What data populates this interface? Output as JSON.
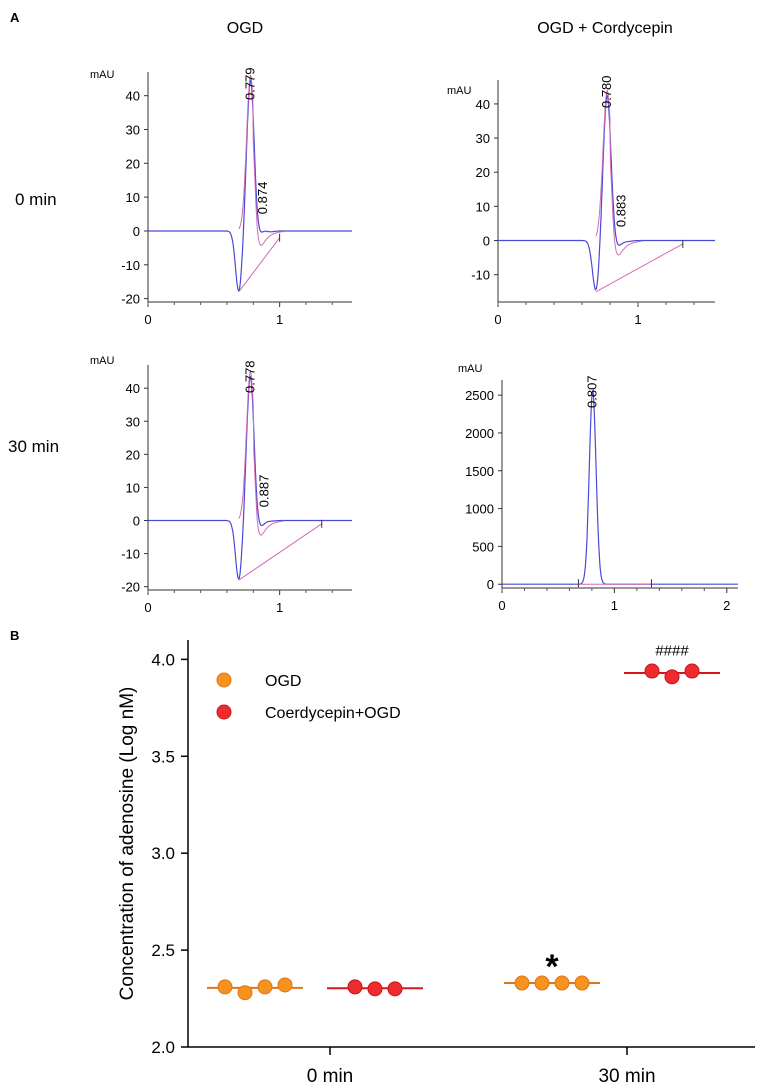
{
  "panel_a": {
    "letter": "A",
    "col_titles": [
      "OGD",
      "OGD + Cordycepin"
    ],
    "row_labels": [
      "0 min",
      "30 min"
    ]
  },
  "panel_b": {
    "letter": "B"
  },
  "chart_data": [
    {
      "type": "line",
      "id": "chrom-ogd-0",
      "title": "OGD",
      "row": "0 min",
      "ylabel": "mAU",
      "xlim": [
        0,
        1.55
      ],
      "ylim": [
        -21,
        47
      ],
      "yticks": [
        -20,
        -10,
        0,
        10,
        20,
        30,
        40
      ],
      "xticks": [
        0,
        1
      ],
      "baseline": 0,
      "dip": {
        "x": 0.69,
        "y": -18
      },
      "peaks": [
        {
          "x": 0.779,
          "y": 46,
          "label": "0.779"
        },
        {
          "x": 0.874,
          "y": 2,
          "label": "0.874"
        }
      ],
      "fit_end": {
        "x": 1.0,
        "y": -2
      }
    },
    {
      "type": "line",
      "id": "chrom-cord-0",
      "title": "OGD + Cordycepin",
      "row": "0 min",
      "ylabel": "mAU",
      "xlim": [
        0,
        1.55
      ],
      "ylim": [
        -18,
        47
      ],
      "yticks": [
        -10,
        0,
        10,
        20,
        30,
        40
      ],
      "xticks": [
        0,
        1
      ],
      "baseline": 0,
      "dip": {
        "x": 0.7,
        "y": -15
      },
      "peaks": [
        {
          "x": 0.78,
          "y": 44,
          "label": "0.780"
        },
        {
          "x": 0.883,
          "y": 1,
          "label": "0.883"
        }
      ],
      "fit_end": {
        "x": 1.32,
        "y": -1
      }
    },
    {
      "type": "line",
      "id": "chrom-ogd-30",
      "title": "OGD",
      "row": "30 min",
      "ylabel": "mAU",
      "xlim": [
        0,
        1.55
      ],
      "ylim": [
        -21,
        47
      ],
      "yticks": [
        -20,
        -10,
        0,
        10,
        20,
        30,
        40
      ],
      "xticks": [
        0,
        1
      ],
      "baseline": 0,
      "dip": {
        "x": 0.69,
        "y": -18
      },
      "peaks": [
        {
          "x": 0.778,
          "y": 45,
          "label": "0.778"
        },
        {
          "x": 0.887,
          "y": 1,
          "label": "0.887"
        }
      ],
      "fit_end": {
        "x": 1.32,
        "y": -1
      }
    },
    {
      "type": "line",
      "id": "chrom-cord-30",
      "title": "OGD + Cordycepin",
      "row": "30 min",
      "ylabel": "mAU",
      "xlim": [
        0,
        2.1
      ],
      "ylim": [
        -50,
        2700
      ],
      "yticks": [
        0,
        500,
        1000,
        1500,
        2000,
        2500
      ],
      "xticks": [
        0,
        1,
        2
      ],
      "baseline": 0,
      "dip": null,
      "peaks": [
        {
          "x": 0.807,
          "y": 2560,
          "label": "0.807"
        }
      ],
      "fit_end": {
        "x": 1.33,
        "y": -10
      }
    },
    {
      "type": "scatter",
      "id": "adenosine-scatter",
      "ylabel": "Concentration of adenosine (Log nM)",
      "ylim": [
        2.0,
        4.1
      ],
      "yticks": [
        2.0,
        2.5,
        3.0,
        3.5,
        4.0
      ],
      "categories": [
        "0 min",
        "30 min"
      ],
      "series": [
        {
          "name": "OGD",
          "color": "#f6921e",
          "groups": [
            [
              2.31,
              2.28,
              2.31,
              2.32
            ],
            [
              2.33,
              2.33,
              2.33,
              2.33
            ]
          ],
          "means": [
            2.305,
            2.33
          ]
        },
        {
          "name": "Coerdycepin+OGD",
          "color": "#ee2b2f",
          "groups": [
            [
              2.31,
              2.3,
              2.3
            ],
            [
              3.94,
              3.91,
              3.94
            ]
          ],
          "means": [
            2.303,
            3.93
          ]
        }
      ],
      "annotations": [
        {
          "text": "*",
          "category": "30 min",
          "series": "OGD",
          "y": 2.46
        },
        {
          "text": "####",
          "category": "30 min",
          "series": "Coerdycepin+OGD",
          "y": 4.02
        }
      ],
      "legend": "top-left"
    }
  ]
}
